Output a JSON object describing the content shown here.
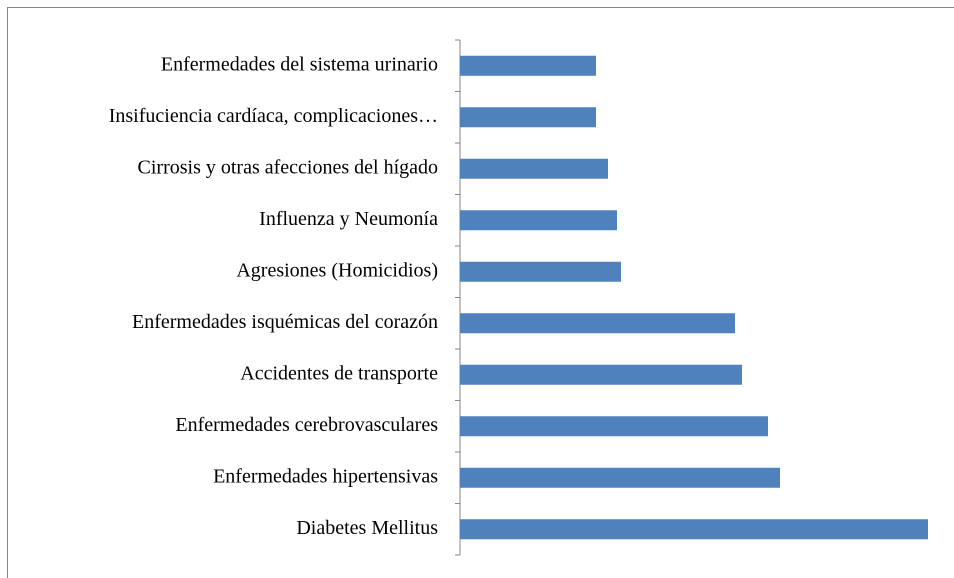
{
  "chart_data": {
    "type": "bar",
    "orientation": "horizontal",
    "categories": [
      "Enfermedades del sistema urinario",
      "Insifuciencia cardíaca, complicaciones…",
      "Cirrosis y otras afecciones del hígado",
      "Influenza y Neumonía",
      "Agresiones (Homicidios)",
      "Enfermedades isquémicas del corazón",
      "Accidentes de transporte",
      "Enfermedades cerebrovasculares",
      "Enfermedades hipertensivas",
      "Diabetes Mellitus"
    ],
    "values": [
      136,
      136,
      148,
      157,
      161,
      275,
      282,
      308,
      320,
      468
    ],
    "color": "#4f81bd",
    "xlim": [
      0,
      470
    ]
  }
}
